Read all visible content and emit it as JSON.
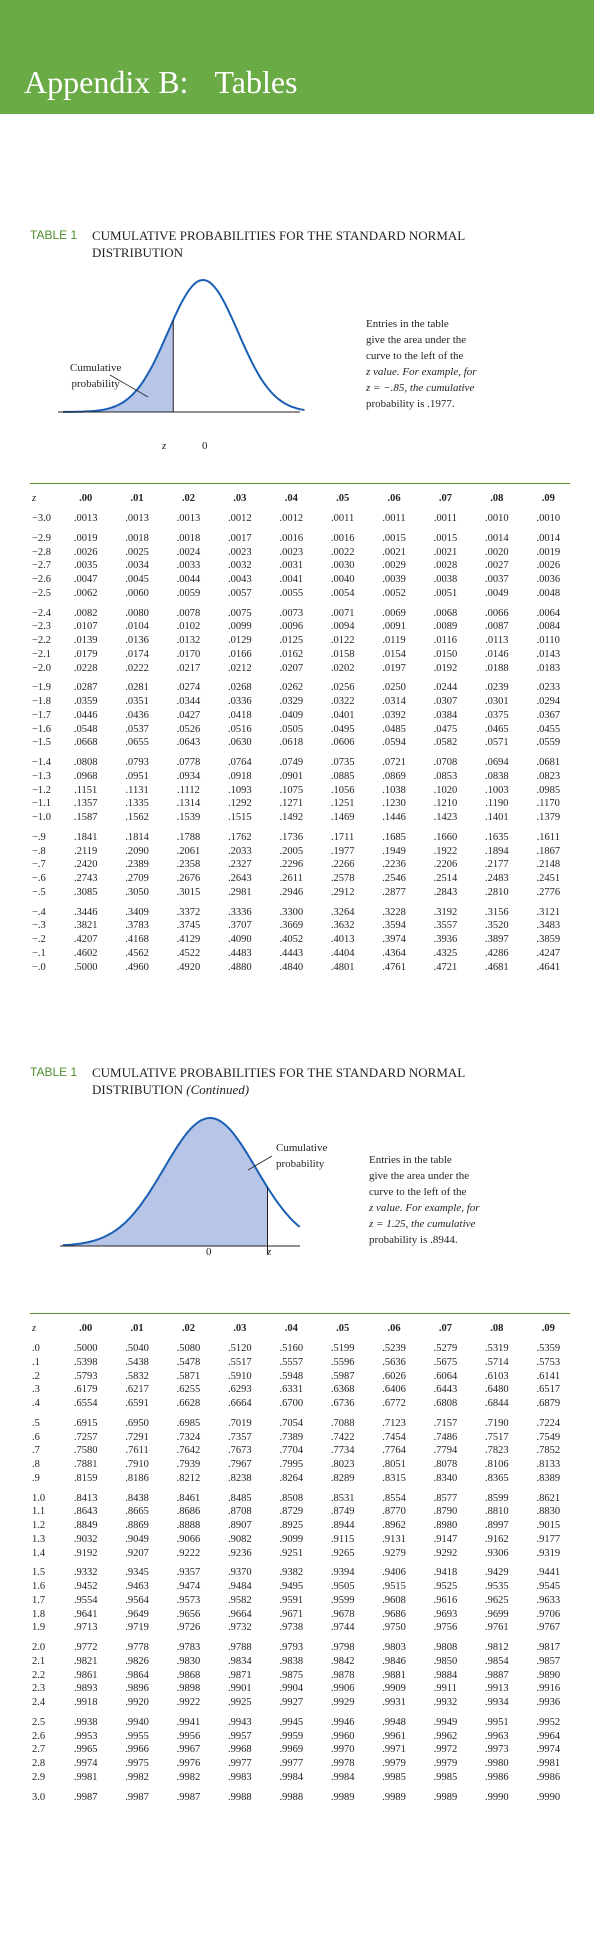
{
  "colors": {
    "banner": "#6aab46",
    "accent": "#4d8f2a",
    "curve": "#1a5fb4",
    "shade": "#b7c5e8"
  },
  "header": {
    "title_a": "Appendix B:",
    "title_b": "Tables"
  },
  "part1": {
    "label": "TABLE 1",
    "title": "CUMULATIVE PROBABILITIES FOR THE STANDARD NORMAL DISTRIBUTION",
    "cum_label_1": "Cumulative",
    "cum_label_2": "probability",
    "z_label": "z",
    "zero_label": "0",
    "note": [
      "Entries in the table",
      "give the area under the",
      "curve to the left of the",
      "z value. For example, for",
      "z = −.85, the cumulative",
      "probability is .1977."
    ],
    "columns": [
      "z",
      ".00",
      ".01",
      ".02",
      ".03",
      ".04",
      ".05",
      ".06",
      ".07",
      ".08",
      ".09"
    ],
    "rows": [
      [
        "−3.0",
        ".0013",
        ".0013",
        ".0013",
        ".0012",
        ".0012",
        ".0011",
        ".0011",
        ".0011",
        ".0010",
        ".0010"
      ],
      [
        "−2.9",
        ".0019",
        ".0018",
        ".0018",
        ".0017",
        ".0016",
        ".0016",
        ".0015",
        ".0015",
        ".0014",
        ".0014"
      ],
      [
        "−2.8",
        ".0026",
        ".0025",
        ".0024",
        ".0023",
        ".0023",
        ".0022",
        ".0021",
        ".0021",
        ".0020",
        ".0019"
      ],
      [
        "−2.7",
        ".0035",
        ".0034",
        ".0033",
        ".0032",
        ".0031",
        ".0030",
        ".0029",
        ".0028",
        ".0027",
        ".0026"
      ],
      [
        "−2.6",
        ".0047",
        ".0045",
        ".0044",
        ".0043",
        ".0041",
        ".0040",
        ".0039",
        ".0038",
        ".0037",
        ".0036"
      ],
      [
        "−2.5",
        ".0062",
        ".0060",
        ".0059",
        ".0057",
        ".0055",
        ".0054",
        ".0052",
        ".0051",
        ".0049",
        ".0048"
      ],
      [
        "−2.4",
        ".0082",
        ".0080",
        ".0078",
        ".0075",
        ".0073",
        ".0071",
        ".0069",
        ".0068",
        ".0066",
        ".0064"
      ],
      [
        "−2.3",
        ".0107",
        ".0104",
        ".0102",
        ".0099",
        ".0096",
        ".0094",
        ".0091",
        ".0089",
        ".0087",
        ".0084"
      ],
      [
        "−2.2",
        ".0139",
        ".0136",
        ".0132",
        ".0129",
        ".0125",
        ".0122",
        ".0119",
        ".0116",
        ".0113",
        ".0110"
      ],
      [
        "−2.1",
        ".0179",
        ".0174",
        ".0170",
        ".0166",
        ".0162",
        ".0158",
        ".0154",
        ".0150",
        ".0146",
        ".0143"
      ],
      [
        "−2.0",
        ".0228",
        ".0222",
        ".0217",
        ".0212",
        ".0207",
        ".0202",
        ".0197",
        ".0192",
        ".0188",
        ".0183"
      ],
      [
        "−1.9",
        ".0287",
        ".0281",
        ".0274",
        ".0268",
        ".0262",
        ".0256",
        ".0250",
        ".0244",
        ".0239",
        ".0233"
      ],
      [
        "−1.8",
        ".0359",
        ".0351",
        ".0344",
        ".0336",
        ".0329",
        ".0322",
        ".0314",
        ".0307",
        ".0301",
        ".0294"
      ],
      [
        "−1.7",
        ".0446",
        ".0436",
        ".0427",
        ".0418",
        ".0409",
        ".0401",
        ".0392",
        ".0384",
        ".0375",
        ".0367"
      ],
      [
        "−1.6",
        ".0548",
        ".0537",
        ".0526",
        ".0516",
        ".0505",
        ".0495",
        ".0485",
        ".0475",
        ".0465",
        ".0455"
      ],
      [
        "−1.5",
        ".0668",
        ".0655",
        ".0643",
        ".0630",
        ".0618",
        ".0606",
        ".0594",
        ".0582",
        ".0571",
        ".0559"
      ],
      [
        "−1.4",
        ".0808",
        ".0793",
        ".0778",
        ".0764",
        ".0749",
        ".0735",
        ".0721",
        ".0708",
        ".0694",
        ".0681"
      ],
      [
        "−1.3",
        ".0968",
        ".0951",
        ".0934",
        ".0918",
        ".0901",
        ".0885",
        ".0869",
        ".0853",
        ".0838",
        ".0823"
      ],
      [
        "−1.2",
        ".1151",
        ".1131",
        ".1112",
        ".1093",
        ".1075",
        ".1056",
        ".1038",
        ".1020",
        ".1003",
        ".0985"
      ],
      [
        "−1.1",
        ".1357",
        ".1335",
        ".1314",
        ".1292",
        ".1271",
        ".1251",
        ".1230",
        ".1210",
        ".1190",
        ".1170"
      ],
      [
        "−1.0",
        ".1587",
        ".1562",
        ".1539",
        ".1515",
        ".1492",
        ".1469",
        ".1446",
        ".1423",
        ".1401",
        ".1379"
      ],
      [
        "−.9",
        ".1841",
        ".1814",
        ".1788",
        ".1762",
        ".1736",
        ".1711",
        ".1685",
        ".1660",
        ".1635",
        ".1611"
      ],
      [
        "−.8",
        ".2119",
        ".2090",
        ".2061",
        ".2033",
        ".2005",
        ".1977",
        ".1949",
        ".1922",
        ".1894",
        ".1867"
      ],
      [
        "−.7",
        ".2420",
        ".2389",
        ".2358",
        ".2327",
        ".2296",
        ".2266",
        ".2236",
        ".2206",
        ".2177",
        ".2148"
      ],
      [
        "−.6",
        ".2743",
        ".2709",
        ".2676",
        ".2643",
        ".2611",
        ".2578",
        ".2546",
        ".2514",
        ".2483",
        ".2451"
      ],
      [
        "−.5",
        ".3085",
        ".3050",
        ".3015",
        ".2981",
        ".2946",
        ".2912",
        ".2877",
        ".2843",
        ".2810",
        ".2776"
      ],
      [
        "−.4",
        ".3446",
        ".3409",
        ".3372",
        ".3336",
        ".3300",
        ".3264",
        ".3228",
        ".3192",
        ".3156",
        ".3121"
      ],
      [
        "−.3",
        ".3821",
        ".3783",
        ".3745",
        ".3707",
        ".3669",
        ".3632",
        ".3594",
        ".3557",
        ".3520",
        ".3483"
      ],
      [
        "−.2",
        ".4207",
        ".4168",
        ".4129",
        ".4090",
        ".4052",
        ".4013",
        ".3974",
        ".3936",
        ".3897",
        ".3859"
      ],
      [
        "−.1",
        ".4602",
        ".4562",
        ".4522",
        ".4483",
        ".4443",
        ".4404",
        ".4364",
        ".4325",
        ".4286",
        ".4247"
      ],
      [
        "−.0",
        ".5000",
        ".4960",
        ".4920",
        ".4880",
        ".4840",
        ".4801",
        ".4761",
        ".4721",
        ".4681",
        ".4641"
      ]
    ]
  },
  "part2": {
    "label": "TABLE 1",
    "title": "CUMULATIVE PROBABILITIES FOR THE STANDARD NORMAL DISTRIBUTION",
    "title_suffix": "(Continued)",
    "cum_label_1": "Cumulative",
    "cum_label_2": "probability",
    "z_label": "z",
    "zero_label": "0",
    "note": [
      "Entries in the table",
      "give the area under the",
      "curve to the left of the",
      "z value. For example, for",
      "z = 1.25, the cumulative",
      "probability is .8944."
    ],
    "columns": [
      "z",
      ".00",
      ".01",
      ".02",
      ".03",
      ".04",
      ".05",
      ".06",
      ".07",
      ".08",
      ".09"
    ],
    "rows": [
      [
        ".0",
        ".5000",
        ".5040",
        ".5080",
        ".5120",
        ".5160",
        ".5199",
        ".5239",
        ".5279",
        ".5319",
        ".5359"
      ],
      [
        ".1",
        ".5398",
        ".5438",
        ".5478",
        ".5517",
        ".5557",
        ".5596",
        ".5636",
        ".5675",
        ".5714",
        ".5753"
      ],
      [
        ".2",
        ".5793",
        ".5832",
        ".5871",
        ".5910",
        ".5948",
        ".5987",
        ".6026",
        ".6064",
        ".6103",
        ".6141"
      ],
      [
        ".3",
        ".6179",
        ".6217",
        ".6255",
        ".6293",
        ".6331",
        ".6368",
        ".6406",
        ".6443",
        ".6480",
        ".6517"
      ],
      [
        ".4",
        ".6554",
        ".6591",
        ".6628",
        ".6664",
        ".6700",
        ".6736",
        ".6772",
        ".6808",
        ".6844",
        ".6879"
      ],
      [
        ".5",
        ".6915",
        ".6950",
        ".6985",
        ".7019",
        ".7054",
        ".7088",
        ".7123",
        ".7157",
        ".7190",
        ".7224"
      ],
      [
        ".6",
        ".7257",
        ".7291",
        ".7324",
        ".7357",
        ".7389",
        ".7422",
        ".7454",
        ".7486",
        ".7517",
        ".7549"
      ],
      [
        ".7",
        ".7580",
        ".7611",
        ".7642",
        ".7673",
        ".7704",
        ".7734",
        ".7764",
        ".7794",
        ".7823",
        ".7852"
      ],
      [
        ".8",
        ".7881",
        ".7910",
        ".7939",
        ".7967",
        ".7995",
        ".8023",
        ".8051",
        ".8078",
        ".8106",
        ".8133"
      ],
      [
        ".9",
        ".8159",
        ".8186",
        ".8212",
        ".8238",
        ".8264",
        ".8289",
        ".8315",
        ".8340",
        ".8365",
        ".8389"
      ],
      [
        "1.0",
        ".8413",
        ".8438",
        ".8461",
        ".8485",
        ".8508",
        ".8531",
        ".8554",
        ".8577",
        ".8599",
        ".8621"
      ],
      [
        "1.1",
        ".8643",
        ".8665",
        ".8686",
        ".8708",
        ".8729",
        ".8749",
        ".8770",
        ".8790",
        ".8810",
        ".8830"
      ],
      [
        "1.2",
        ".8849",
        ".8869",
        ".8888",
        ".8907",
        ".8925",
        ".8944",
        ".8962",
        ".8980",
        ".8997",
        ".9015"
      ],
      [
        "1.3",
        ".9032",
        ".9049",
        ".9066",
        ".9082",
        ".9099",
        ".9115",
        ".9131",
        ".9147",
        ".9162",
        ".9177"
      ],
      [
        "1.4",
        ".9192",
        ".9207",
        ".9222",
        ".9236",
        ".9251",
        ".9265",
        ".9279",
        ".9292",
        ".9306",
        ".9319"
      ],
      [
        "1.5",
        ".9332",
        ".9345",
        ".9357",
        ".9370",
        ".9382",
        ".9394",
        ".9406",
        ".9418",
        ".9429",
        ".9441"
      ],
      [
        "1.6",
        ".9452",
        ".9463",
        ".9474",
        ".9484",
        ".9495",
        ".9505",
        ".9515",
        ".9525",
        ".9535",
        ".9545"
      ],
      [
        "1.7",
        ".9554",
        ".9564",
        ".9573",
        ".9582",
        ".9591",
        ".9599",
        ".9608",
        ".9616",
        ".9625",
        ".9633"
      ],
      [
        "1.8",
        ".9641",
        ".9649",
        ".9656",
        ".9664",
        ".9671",
        ".9678",
        ".9686",
        ".9693",
        ".9699",
        ".9706"
      ],
      [
        "1.9",
        ".9713",
        ".9719",
        ".9726",
        ".9732",
        ".9738",
        ".9744",
        ".9750",
        ".9756",
        ".9761",
        ".9767"
      ],
      [
        "2.0",
        ".9772",
        ".9778",
        ".9783",
        ".9788",
        ".9793",
        ".9798",
        ".9803",
        ".9808",
        ".9812",
        ".9817"
      ],
      [
        "2.1",
        ".9821",
        ".9826",
        ".9830",
        ".9834",
        ".9838",
        ".9842",
        ".9846",
        ".9850",
        ".9854",
        ".9857"
      ],
      [
        "2.2",
        ".9861",
        ".9864",
        ".9868",
        ".9871",
        ".9875",
        ".9878",
        ".9881",
        ".9884",
        ".9887",
        ".9890"
      ],
      [
        "2.3",
        ".9893",
        ".9896",
        ".9898",
        ".9901",
        ".9904",
        ".9906",
        ".9909",
        ".9911",
        ".9913",
        ".9916"
      ],
      [
        "2.4",
        ".9918",
        ".9920",
        ".9922",
        ".9925",
        ".9927",
        ".9929",
        ".9931",
        ".9932",
        ".9934",
        ".9936"
      ],
      [
        "2.5",
        ".9938",
        ".9940",
        ".9941",
        ".9943",
        ".9945",
        ".9946",
        ".9948",
        ".9949",
        ".9951",
        ".9952"
      ],
      [
        "2.6",
        ".9953",
        ".9955",
        ".9956",
        ".9957",
        ".9959",
        ".9960",
        ".9961",
        ".9962",
        ".9963",
        ".9964"
      ],
      [
        "2.7",
        ".9965",
        ".9966",
        ".9967",
        ".9968",
        ".9969",
        ".9970",
        ".9971",
        ".9972",
        ".9973",
        ".9974"
      ],
      [
        "2.8",
        ".9974",
        ".9975",
        ".9976",
        ".9977",
        ".9977",
        ".9978",
        ".9979",
        ".9979",
        ".9980",
        ".9981"
      ],
      [
        "2.9",
        ".9981",
        ".9982",
        ".9982",
        ".9983",
        ".9984",
        ".9984",
        ".9985",
        ".9985",
        ".9986",
        ".9986"
      ],
      [
        "3.0",
        ".9987",
        ".9987",
        ".9987",
        ".9988",
        ".9988",
        ".9989",
        ".9989",
        ".9989",
        ".9990",
        ".9990"
      ]
    ]
  }
}
